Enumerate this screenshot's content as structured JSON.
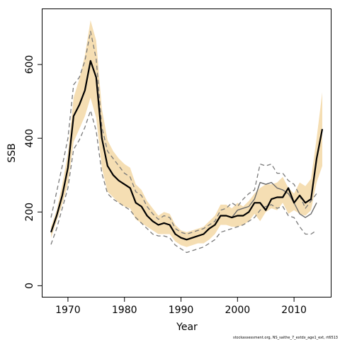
{
  "chart_data": {
    "type": "line",
    "xlabel": "Year",
    "ylabel": "SSB",
    "footnote": "stockassessment.org, NS_saithe_7_extdx_age1_ext, rt6513",
    "xlim": [
      1965.5,
      2016.5
    ],
    "ylim": [
      -30,
      750
    ],
    "xticks": [
      1970,
      1980,
      1990,
      2000,
      2010
    ],
    "yticks": [
      0,
      200,
      400,
      600
    ],
    "colors": {
      "band": "#f5deb3",
      "estimate": "#000000",
      "retro": "#6b6b6b",
      "bounds": "#7a7a7a"
    },
    "series": [
      {
        "style": "confidence band",
        "x": [
          1967,
          1968,
          1969,
          1970,
          1971,
          1972,
          1973,
          1974,
          1975,
          1976,
          1977,
          1978,
          1979,
          1980,
          1981,
          1982,
          1983,
          1984,
          1985,
          1986,
          1987,
          1988,
          1989,
          1990,
          1991,
          1992,
          1993,
          1994,
          1995,
          1996,
          1997,
          1998,
          1999,
          2000,
          2001,
          2002,
          2003,
          2004,
          2005,
          2006,
          2007,
          2008,
          2009,
          2010,
          2011,
          2012,
          2013,
          2014,
          2015
        ],
        "upper": [
          160,
          205,
          275,
          360,
          510,
          560,
          625,
          720,
          665,
          480,
          395,
          365,
          345,
          330,
          320,
          275,
          260,
          230,
          210,
          190,
          200,
          195,
          165,
          150,
          145,
          150,
          155,
          160,
          175,
          190,
          220,
          220,
          210,
          225,
          215,
          230,
          250,
          265,
          275,
          275,
          280,
          295,
          265,
          250,
          280,
          270,
          290,
          400,
          525
        ],
        "lower": [
          130,
          175,
          220,
          275,
          390,
          425,
          460,
          510,
          455,
          320,
          255,
          240,
          225,
          215,
          210,
          180,
          170,
          160,
          150,
          140,
          140,
          140,
          120,
          110,
          105,
          110,
          115,
          115,
          125,
          140,
          165,
          165,
          160,
          160,
          165,
          175,
          195,
          175,
          200,
          210,
          205,
          225,
          195,
          205,
          195,
          190,
          205,
          280,
          325
        ]
      },
      {
        "style": "estimate",
        "x": [
          1967,
          1968,
          1969,
          1970,
          1971,
          1972,
          1973,
          1974,
          1975,
          1976,
          1977,
          1978,
          1979,
          1980,
          1981,
          1982,
          1983,
          1984,
          1985,
          1986,
          1987,
          1988,
          1989,
          1990,
          1991,
          1992,
          1993,
          1994,
          1995,
          1996,
          1997,
          1998,
          1999,
          2000,
          2001,
          2002,
          2003,
          2004,
          2005,
          2006,
          2007,
          2008,
          2009,
          2010,
          2011,
          2012,
          2013,
          2014,
          2015
        ],
        "values": [
          145,
          190,
          245,
          320,
          460,
          490,
          530,
          610,
          565,
          400,
          325,
          300,
          285,
          275,
          265,
          225,
          215,
          190,
          175,
          165,
          170,
          165,
          140,
          130,
          125,
          130,
          135,
          140,
          155,
          165,
          190,
          190,
          185,
          190,
          190,
          200,
          225,
          225,
          205,
          235,
          240,
          240,
          265,
          225,
          245,
          225,
          235,
          345,
          425
        ]
      },
      {
        "style": "retrospective",
        "x": [
          1999,
          2000,
          2001,
          2002,
          2003,
          2004,
          2005,
          2006,
          2007,
          2008,
          2009,
          2010,
          2011,
          2012,
          2013,
          2014
        ],
        "values": [
          185,
          205,
          210,
          215,
          235,
          280,
          275,
          280,
          265,
          260,
          250,
          225,
          195,
          185,
          195,
          225
        ]
      },
      {
        "style": "upper bound (dashed)",
        "x": [
          1967,
          1968,
          1969,
          1970,
          1971,
          1972,
          1973,
          1974,
          1975,
          1976,
          1977,
          1978,
          1979,
          1980,
          1981,
          1982,
          1983,
          1984,
          1985,
          1986,
          1987,
          1988,
          1989,
          1990,
          1991,
          1992,
          1993,
          1994,
          1995,
          1996,
          1997,
          1998,
          1999,
          2000,
          2001,
          2002,
          2003,
          2004,
          2005,
          2006,
          2007,
          2008,
          2009,
          2010,
          2011,
          2012,
          2013,
          2014
        ],
        "values": [
          185,
          255,
          325,
          400,
          545,
          565,
          610,
          690,
          615,
          430,
          365,
          345,
          325,
          305,
          295,
          255,
          245,
          215,
          195,
          180,
          190,
          185,
          155,
          145,
          140,
          145,
          150,
          155,
          165,
          175,
          205,
          210,
          225,
          215,
          235,
          250,
          260,
          330,
          325,
          330,
          305,
          305,
          285,
          275,
          245,
          210,
          230,
          250
        ]
      },
      {
        "style": "lower bound (dashed)",
        "x": [
          1967,
          1968,
          1969,
          1970,
          1971,
          1972,
          1973,
          1974,
          1975,
          1976,
          1977,
          1978,
          1979,
          1980,
          1981,
          1982,
          1983,
          1984,
          1985,
          1986,
          1987,
          1988,
          1989,
          1990,
          1991,
          1992,
          1993,
          1994,
          1995,
          1996,
          1997,
          1998,
          1999,
          2000,
          2001,
          2002,
          2003,
          2004,
          2005,
          2006,
          2007,
          2008,
          2009,
          2010,
          2011,
          2012,
          2013,
          2014
        ],
        "values": [
          112,
          155,
          210,
          265,
          370,
          395,
          430,
          475,
          420,
          305,
          250,
          235,
          225,
          215,
          205,
          185,
          170,
          155,
          140,
          135,
          135,
          130,
          110,
          100,
          90,
          95,
          100,
          105,
          115,
          125,
          145,
          150,
          155,
          160,
          165,
          175,
          185,
          205,
          215,
          220,
          210,
          215,
          190,
          185,
          160,
          140,
          140,
          150
        ]
      }
    ]
  }
}
